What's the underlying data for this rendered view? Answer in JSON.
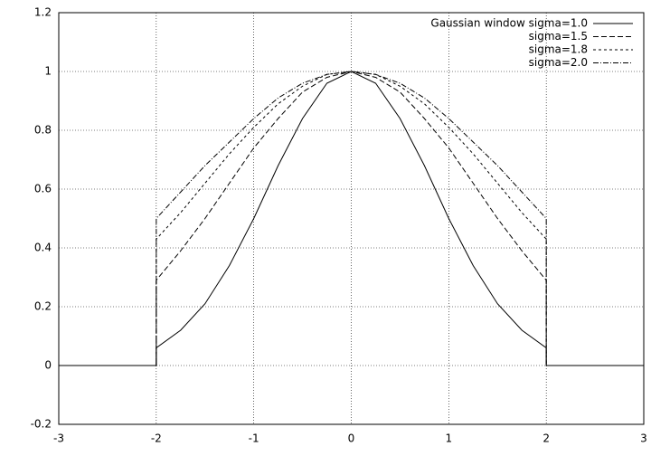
{
  "chart_data": {
    "type": "line",
    "x": [
      -3,
      -2.5,
      -2,
      -2,
      -1.75,
      -1.5,
      -1.25,
      -1,
      -0.75,
      -0.5,
      -0.25,
      0,
      0.25,
      0.5,
      0.75,
      1,
      1.25,
      1.5,
      1.75,
      2,
      2,
      2.5,
      3
    ],
    "series": [
      {
        "name": "Gaussian window sigma=1.0",
        "color": "#000000",
        "values": [
          0,
          0,
          0,
          0.06,
          0.12,
          0.21,
          0.34,
          0.5,
          0.68,
          0.84,
          0.96,
          1,
          0.96,
          0.84,
          0.68,
          0.5,
          0.34,
          0.21,
          0.12,
          0.06,
          0,
          0,
          0
        ]
      },
      {
        "name": "sigma=1.5",
        "color": "#000000",
        "values": [
          0,
          0,
          0,
          0.29,
          0.39,
          0.5,
          0.62,
          0.74,
          0.84,
          0.93,
          0.98,
          1,
          0.98,
          0.93,
          0.84,
          0.74,
          0.62,
          0.5,
          0.39,
          0.29,
          0,
          0,
          0
        ]
      },
      {
        "name": "sigma=1.8",
        "color": "#000000",
        "values": [
          0,
          0,
          0,
          0.43,
          0.52,
          0.62,
          0.72,
          0.81,
          0.89,
          0.95,
          0.99,
          1,
          0.99,
          0.95,
          0.89,
          0.81,
          0.72,
          0.62,
          0.52,
          0.43,
          0,
          0,
          0
        ]
      },
      {
        "name": "sigma=2.0",
        "color": "#000000",
        "values": [
          0,
          0,
          0,
          0.5,
          0.59,
          0.68,
          0.76,
          0.84,
          0.91,
          0.96,
          0.99,
          1,
          0.99,
          0.96,
          0.91,
          0.84,
          0.76,
          0.68,
          0.59,
          0.5,
          0,
          0,
          0
        ]
      }
    ],
    "xlim": [
      -3,
      3
    ],
    "xticks": [
      -3,
      -2,
      -1,
      0,
      1,
      2,
      3
    ],
    "ylim": [
      -0.2,
      1.2
    ],
    "yticks": [
      -0.2,
      0,
      0.2,
      0.4,
      0.6,
      0.8,
      1,
      1.2
    ],
    "grid": true,
    "legend": "top-right"
  }
}
